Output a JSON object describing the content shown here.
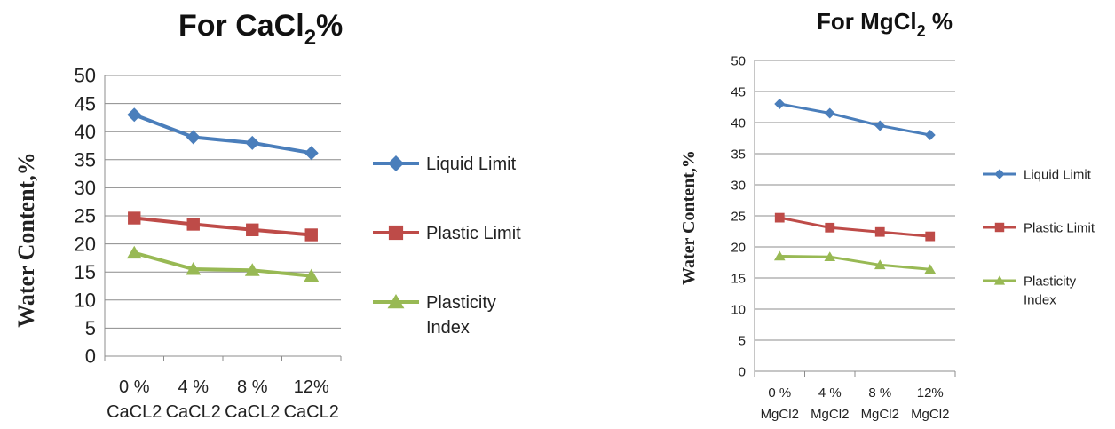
{
  "colors": {
    "liquid": "#4A7EBB",
    "plastic": "#BE4B48",
    "plasticity": "#98B954",
    "grid": "#8C8C8C"
  },
  "chart_data": [
    {
      "type": "line",
      "title_main": "For CaCl",
      "title_sub": "2",
      "title_suffix": "%",
      "ylabel": "Water Content,%",
      "ylim": [
        0,
        50
      ],
      "yticks": [
        "0",
        "5",
        "10",
        "15",
        "20",
        "25",
        "30",
        "35",
        "40",
        "45",
        "50"
      ],
      "categories": [
        [
          "0 %",
          "CaCL2"
        ],
        [
          "4 %",
          "CaCL2"
        ],
        [
          "8 %",
          "CaCL2"
        ],
        [
          "12%",
          "CaCL2"
        ]
      ],
      "series": [
        {
          "name": "Liquid Limit",
          "values": [
            43,
            39,
            38,
            36.2
          ],
          "marker": "diamond",
          "color": "#4A7EBB"
        },
        {
          "name": "Plastic Limit",
          "values": [
            24.6,
            23.5,
            22.5,
            21.6
          ],
          "marker": "square",
          "color": "#BE4B48"
        },
        {
          "name": "Plasticity Index",
          "legend_lines": [
            "Plasticity",
            "Index"
          ],
          "values": [
            18.4,
            15.5,
            15.3,
            14.3
          ],
          "marker": "triangle",
          "color": "#98B954"
        }
      ],
      "grid": true,
      "legend": "right"
    },
    {
      "type": "line",
      "title_main": "For MgCl",
      "title_sub": "2",
      "title_suffix": " %",
      "ylabel": "Water Content,%",
      "ylim": [
        0,
        50
      ],
      "yticks": [
        "0",
        "5",
        "10",
        "15",
        "20",
        "25",
        "30",
        "35",
        "40",
        "45",
        "50"
      ],
      "categories": [
        [
          "0 %",
          "MgCl2"
        ],
        [
          "4 %",
          "MgCl2"
        ],
        [
          "8 %",
          "MgCl2"
        ],
        [
          "12%",
          "MgCl2"
        ]
      ],
      "series": [
        {
          "name": "Liquid Limit",
          "values": [
            43,
            41.5,
            39.5,
            38
          ],
          "marker": "diamond",
          "color": "#4A7EBB"
        },
        {
          "name": "Plastic Limit",
          "values": [
            24.7,
            23.1,
            22.4,
            21.7
          ],
          "marker": "square",
          "color": "#BE4B48"
        },
        {
          "name": "Plasticity Index",
          "legend_lines": [
            "Plasticity",
            "Index"
          ],
          "values": [
            18.5,
            18.4,
            17.1,
            16.4
          ],
          "marker": "triangle",
          "color": "#98B954"
        }
      ],
      "grid": true,
      "legend": "right"
    }
  ]
}
